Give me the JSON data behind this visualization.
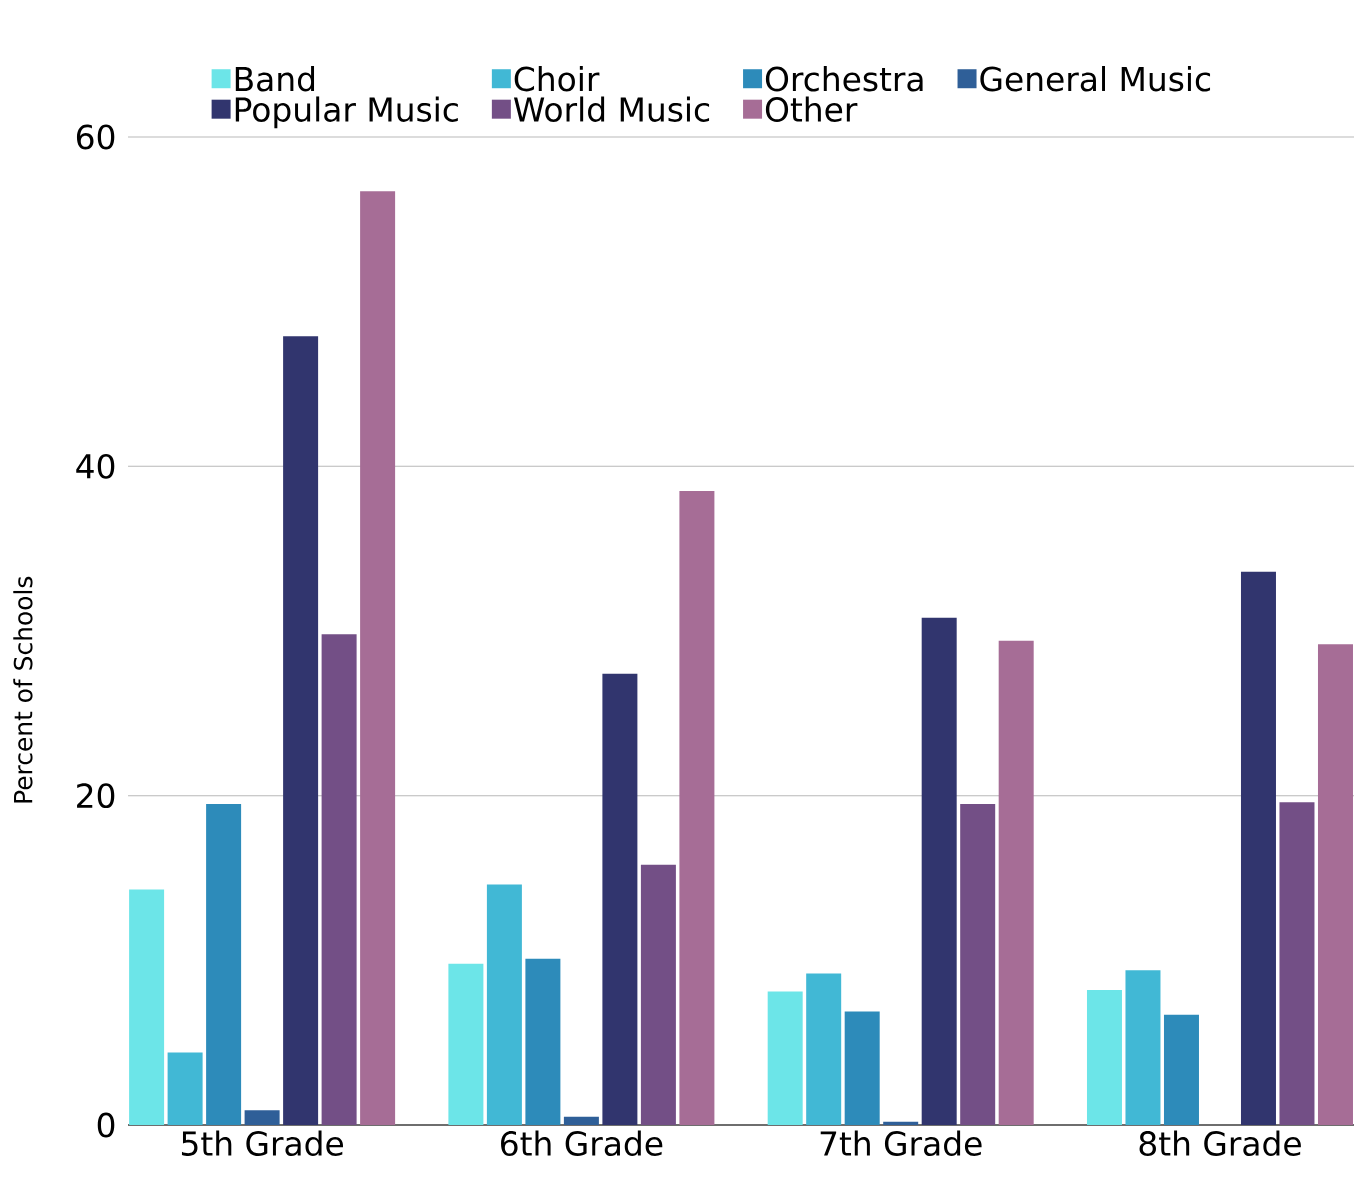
{
  "chart_data": {
    "type": "bar",
    "ylabel": "Percent of Schools",
    "categories": [
      "5th Grade",
      "6th Grade",
      "7th Grade",
      "8th Grade"
    ],
    "series": [
      {
        "name": "Band",
        "color": "#6ce5e8",
        "values": [
          14.3,
          9.8,
          8.1,
          8.2
        ]
      },
      {
        "name": "Choir",
        "color": "#41b8d5",
        "values": [
          4.4,
          14.6,
          9.2,
          9.4
        ]
      },
      {
        "name": "Orchestra",
        "color": "#2d8bba",
        "values": [
          19.5,
          10.1,
          6.9,
          6.7
        ]
      },
      {
        "name": "General Music",
        "color": "#2f5f98",
        "values": [
          0.9,
          0.5,
          0.2,
          0
        ]
      },
      {
        "name": "Popular Music",
        "color": "#31356e",
        "values": [
          47.9,
          27.4,
          30.8,
          33.6
        ]
      },
      {
        "name": "World Music",
        "color": "#734f86",
        "values": [
          29.8,
          15.8,
          19.5,
          19.6
        ]
      },
      {
        "name": "Other",
        "color": "#a66d96",
        "values": [
          56.7,
          38.5,
          29.4,
          29.2
        ]
      }
    ],
    "ylim": [
      0,
      60
    ],
    "yticks": [
      0,
      20,
      40,
      60
    ],
    "grid": "y",
    "legend": "top"
  }
}
